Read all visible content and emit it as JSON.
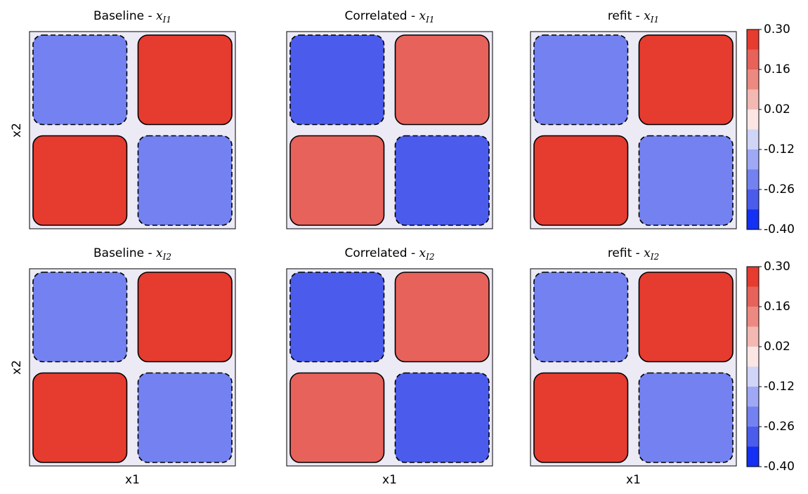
{
  "chart_data": [
    {
      "type": "contour",
      "title": "Baseline - ",
      "title_var": "x",
      "title_sub": "I1",
      "ylabel": "x2",
      "z": [
        [
          -0.22,
          0.28
        ],
        [
          0.28,
          -0.22
        ]
      ]
    },
    {
      "type": "contour",
      "title": "Correlated - ",
      "title_var": "x",
      "title_sub": "I1",
      "z": [
        [
          -0.3,
          0.2
        ],
        [
          0.2,
          -0.3
        ]
      ]
    },
    {
      "type": "contour",
      "title": "refit - ",
      "title_var": "x",
      "title_sub": "I1",
      "z": [
        [
          -0.22,
          0.28
        ],
        [
          0.28,
          -0.22
        ]
      ],
      "colorbar": {
        "levels": [
          -0.4,
          -0.33,
          -0.26,
          -0.19,
          -0.12,
          -0.05,
          0.02,
          0.09,
          0.16,
          0.23,
          0.3
        ],
        "colors": [
          "#1430f4",
          "#4b5cec",
          "#7382f0",
          "#9ea8f4",
          "#d0d4f7",
          "#fbe6e4",
          "#f4b8b2",
          "#ec8a82",
          "#e7625a",
          "#e63b2f"
        ],
        "ticks": [
          {
            "value": 0.3,
            "label": "0.30"
          },
          {
            "value": 0.16,
            "label": "0.16"
          },
          {
            "value": 0.02,
            "label": "0.02"
          },
          {
            "value": -0.12,
            "label": "-0.12"
          },
          {
            "value": -0.26,
            "label": "-0.26"
          },
          {
            "value": -0.4,
            "label": "-0.40"
          }
        ]
      }
    },
    {
      "type": "contour",
      "title": "Baseline - ",
      "title_var": "x",
      "title_sub": "I2",
      "ylabel": "x2",
      "xlabel": "x1",
      "z": [
        [
          -0.22,
          0.25
        ],
        [
          0.28,
          -0.22
        ]
      ]
    },
    {
      "type": "contour",
      "title": "Correlated - ",
      "title_var": "x",
      "title_sub": "I2",
      "xlabel": "x1",
      "z": [
        [
          -0.3,
          0.22
        ],
        [
          0.22,
          -0.3
        ]
      ]
    },
    {
      "type": "contour",
      "title": "refit - ",
      "title_var": "x",
      "title_sub": "I2",
      "xlabel": "x1",
      "z": [
        [
          -0.22,
          0.26
        ],
        [
          0.28,
          -0.22
        ]
      ],
      "colorbar": {
        "levels": [
          -0.4,
          -0.33,
          -0.26,
          -0.19,
          -0.12,
          -0.05,
          0.02,
          0.09,
          0.16,
          0.23,
          0.3
        ],
        "colors": [
          "#1430f4",
          "#4b5cec",
          "#7382f0",
          "#9ea8f4",
          "#d0d4f7",
          "#fbe6e4",
          "#f4b8b2",
          "#ec8a82",
          "#e7625a",
          "#e63b2f"
        ],
        "ticks": [
          {
            "value": 0.3,
            "label": "0.30"
          },
          {
            "value": 0.16,
            "label": "0.16"
          },
          {
            "value": 0.02,
            "label": "0.02"
          },
          {
            "value": -0.12,
            "label": "-0.12"
          },
          {
            "value": -0.26,
            "label": "-0.26"
          },
          {
            "value": -0.4,
            "label": "-0.40"
          }
        ]
      }
    }
  ]
}
